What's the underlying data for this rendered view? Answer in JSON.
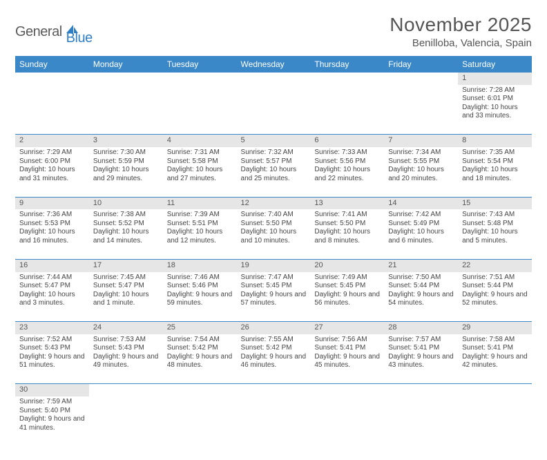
{
  "logo": {
    "text1": "General",
    "text2": "Blue",
    "icon_color": "#2f7fc5"
  },
  "title": "November 2025",
  "location": "Benilloba, Valencia, Spain",
  "day_headers": [
    "Sunday",
    "Monday",
    "Tuesday",
    "Wednesday",
    "Thursday",
    "Friday",
    "Saturday"
  ],
  "colors": {
    "header_bg": "#3b88c8",
    "header_text": "#ffffff",
    "daynum_bg": "#e6e6e6",
    "border": "#3b88c8",
    "text": "#444444"
  },
  "weeks": [
    [
      null,
      null,
      null,
      null,
      null,
      null,
      {
        "n": "1",
        "sunrise": "Sunrise: 7:28 AM",
        "sunset": "Sunset: 6:01 PM",
        "daylight": "Daylight: 10 hours and 33 minutes."
      }
    ],
    [
      {
        "n": "2",
        "sunrise": "Sunrise: 7:29 AM",
        "sunset": "Sunset: 6:00 PM",
        "daylight": "Daylight: 10 hours and 31 minutes."
      },
      {
        "n": "3",
        "sunrise": "Sunrise: 7:30 AM",
        "sunset": "Sunset: 5:59 PM",
        "daylight": "Daylight: 10 hours and 29 minutes."
      },
      {
        "n": "4",
        "sunrise": "Sunrise: 7:31 AM",
        "sunset": "Sunset: 5:58 PM",
        "daylight": "Daylight: 10 hours and 27 minutes."
      },
      {
        "n": "5",
        "sunrise": "Sunrise: 7:32 AM",
        "sunset": "Sunset: 5:57 PM",
        "daylight": "Daylight: 10 hours and 25 minutes."
      },
      {
        "n": "6",
        "sunrise": "Sunrise: 7:33 AM",
        "sunset": "Sunset: 5:56 PM",
        "daylight": "Daylight: 10 hours and 22 minutes."
      },
      {
        "n": "7",
        "sunrise": "Sunrise: 7:34 AM",
        "sunset": "Sunset: 5:55 PM",
        "daylight": "Daylight: 10 hours and 20 minutes."
      },
      {
        "n": "8",
        "sunrise": "Sunrise: 7:35 AM",
        "sunset": "Sunset: 5:54 PM",
        "daylight": "Daylight: 10 hours and 18 minutes."
      }
    ],
    [
      {
        "n": "9",
        "sunrise": "Sunrise: 7:36 AM",
        "sunset": "Sunset: 5:53 PM",
        "daylight": "Daylight: 10 hours and 16 minutes."
      },
      {
        "n": "10",
        "sunrise": "Sunrise: 7:38 AM",
        "sunset": "Sunset: 5:52 PM",
        "daylight": "Daylight: 10 hours and 14 minutes."
      },
      {
        "n": "11",
        "sunrise": "Sunrise: 7:39 AM",
        "sunset": "Sunset: 5:51 PM",
        "daylight": "Daylight: 10 hours and 12 minutes."
      },
      {
        "n": "12",
        "sunrise": "Sunrise: 7:40 AM",
        "sunset": "Sunset: 5:50 PM",
        "daylight": "Daylight: 10 hours and 10 minutes."
      },
      {
        "n": "13",
        "sunrise": "Sunrise: 7:41 AM",
        "sunset": "Sunset: 5:50 PM",
        "daylight": "Daylight: 10 hours and 8 minutes."
      },
      {
        "n": "14",
        "sunrise": "Sunrise: 7:42 AM",
        "sunset": "Sunset: 5:49 PM",
        "daylight": "Daylight: 10 hours and 6 minutes."
      },
      {
        "n": "15",
        "sunrise": "Sunrise: 7:43 AM",
        "sunset": "Sunset: 5:48 PM",
        "daylight": "Daylight: 10 hours and 5 minutes."
      }
    ],
    [
      {
        "n": "16",
        "sunrise": "Sunrise: 7:44 AM",
        "sunset": "Sunset: 5:47 PM",
        "daylight": "Daylight: 10 hours and 3 minutes."
      },
      {
        "n": "17",
        "sunrise": "Sunrise: 7:45 AM",
        "sunset": "Sunset: 5:47 PM",
        "daylight": "Daylight: 10 hours and 1 minute."
      },
      {
        "n": "18",
        "sunrise": "Sunrise: 7:46 AM",
        "sunset": "Sunset: 5:46 PM",
        "daylight": "Daylight: 9 hours and 59 minutes."
      },
      {
        "n": "19",
        "sunrise": "Sunrise: 7:47 AM",
        "sunset": "Sunset: 5:45 PM",
        "daylight": "Daylight: 9 hours and 57 minutes."
      },
      {
        "n": "20",
        "sunrise": "Sunrise: 7:49 AM",
        "sunset": "Sunset: 5:45 PM",
        "daylight": "Daylight: 9 hours and 56 minutes."
      },
      {
        "n": "21",
        "sunrise": "Sunrise: 7:50 AM",
        "sunset": "Sunset: 5:44 PM",
        "daylight": "Daylight: 9 hours and 54 minutes."
      },
      {
        "n": "22",
        "sunrise": "Sunrise: 7:51 AM",
        "sunset": "Sunset: 5:44 PM",
        "daylight": "Daylight: 9 hours and 52 minutes."
      }
    ],
    [
      {
        "n": "23",
        "sunrise": "Sunrise: 7:52 AM",
        "sunset": "Sunset: 5:43 PM",
        "daylight": "Daylight: 9 hours and 51 minutes."
      },
      {
        "n": "24",
        "sunrise": "Sunrise: 7:53 AM",
        "sunset": "Sunset: 5:43 PM",
        "daylight": "Daylight: 9 hours and 49 minutes."
      },
      {
        "n": "25",
        "sunrise": "Sunrise: 7:54 AM",
        "sunset": "Sunset: 5:42 PM",
        "daylight": "Daylight: 9 hours and 48 minutes."
      },
      {
        "n": "26",
        "sunrise": "Sunrise: 7:55 AM",
        "sunset": "Sunset: 5:42 PM",
        "daylight": "Daylight: 9 hours and 46 minutes."
      },
      {
        "n": "27",
        "sunrise": "Sunrise: 7:56 AM",
        "sunset": "Sunset: 5:41 PM",
        "daylight": "Daylight: 9 hours and 45 minutes."
      },
      {
        "n": "28",
        "sunrise": "Sunrise: 7:57 AM",
        "sunset": "Sunset: 5:41 PM",
        "daylight": "Daylight: 9 hours and 43 minutes."
      },
      {
        "n": "29",
        "sunrise": "Sunrise: 7:58 AM",
        "sunset": "Sunset: 5:41 PM",
        "daylight": "Daylight: 9 hours and 42 minutes."
      }
    ],
    [
      {
        "n": "30",
        "sunrise": "Sunrise: 7:59 AM",
        "sunset": "Sunset: 5:40 PM",
        "daylight": "Daylight: 9 hours and 41 minutes."
      },
      null,
      null,
      null,
      null,
      null,
      null
    ]
  ]
}
